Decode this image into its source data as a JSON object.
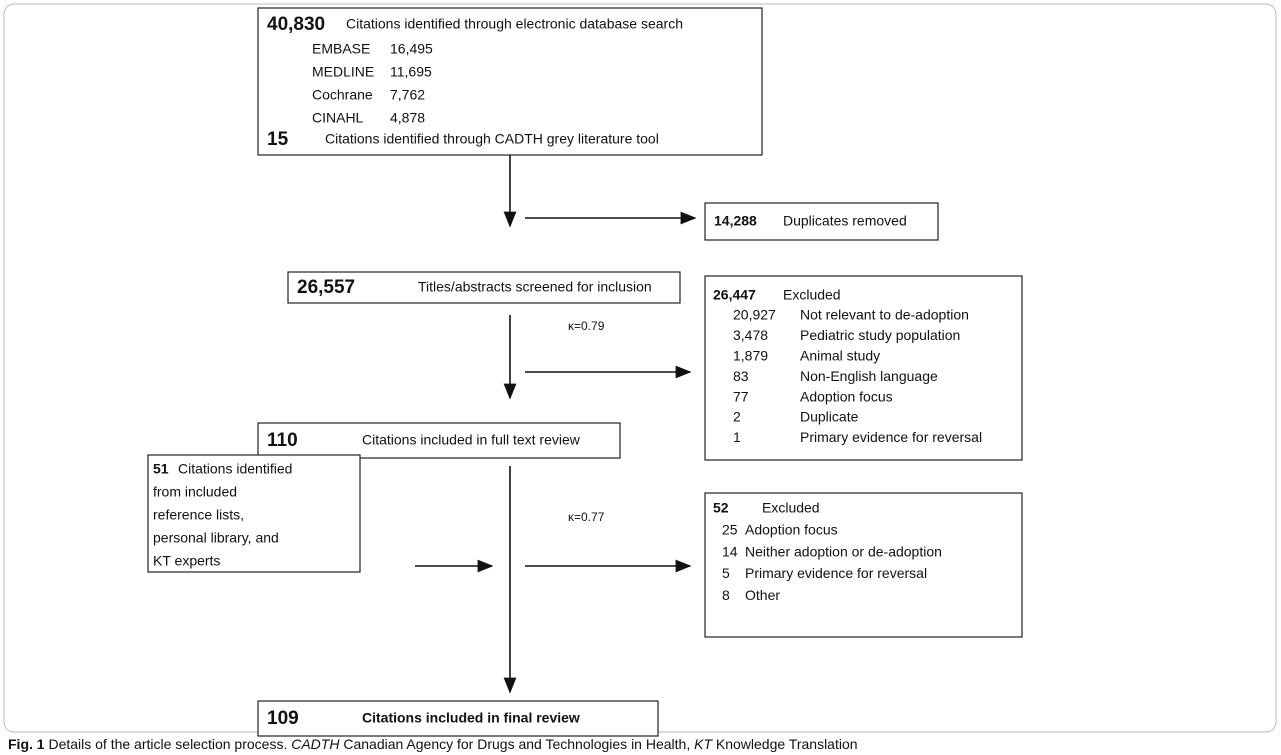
{
  "identification": {
    "count": "40,830",
    "text": "Citations identified through electronic database search",
    "sources": [
      {
        "name": "EMBASE",
        "count": "16,495"
      },
      {
        "name": "MEDLINE",
        "count": "11,695"
      },
      {
        "name": "Cochrane",
        "count": "7,762"
      },
      {
        "name": "CINAHL",
        "count": "4,878"
      }
    ],
    "grey": {
      "count": "15",
      "text": "Citations identified through CADTH grey literature tool"
    }
  },
  "duplicates": {
    "count": "14,288",
    "text": "Duplicates removed"
  },
  "screened": {
    "count": "26,557",
    "text": "Titles/abstracts screened for inclusion"
  },
  "kappa_screening": "κ=0.79",
  "excluded_screening": {
    "count": "26,447",
    "text": "Excluded",
    "reasons": [
      {
        "count": "20,927",
        "text": "Not relevant to de-adoption"
      },
      {
        "count": "3,478",
        "text": "Pediatric study population"
      },
      {
        "count": "1,879",
        "text": "Animal study"
      },
      {
        "count": "83",
        "text": "Non-English language"
      },
      {
        "count": "77",
        "text": "Adoption focus"
      },
      {
        "count": "2",
        "text": "Duplicate"
      },
      {
        "count": "1",
        "text": "Primary evidence for reversal"
      }
    ]
  },
  "full_text": {
    "count": "110",
    "text": "Citations included in full text review"
  },
  "kappa_full_text": "κ=0.77",
  "additional": {
    "count": "51",
    "lines": [
      "Citations identified",
      "from included",
      "reference lists,",
      "personal library, and",
      "KT experts"
    ]
  },
  "excluded_full_text": {
    "count": "52",
    "text": "Excluded",
    "reasons": [
      {
        "count": "25",
        "text": "Adoption focus"
      },
      {
        "count": "14",
        "text": "Neither adoption or de-adoption"
      },
      {
        "count": "5",
        "text": "Primary evidence for reversal"
      },
      {
        "count": "8",
        "text": "Other"
      }
    ]
  },
  "final": {
    "count": "109",
    "text": "Citations included in final review"
  },
  "caption": {
    "label": "Fig. 1",
    "parts": [
      "Details of the article selection process.",
      "CADTH",
      "Canadian Agency for Drugs and Technologies in Health,",
      "KT",
      "Knowledge Translation"
    ]
  }
}
